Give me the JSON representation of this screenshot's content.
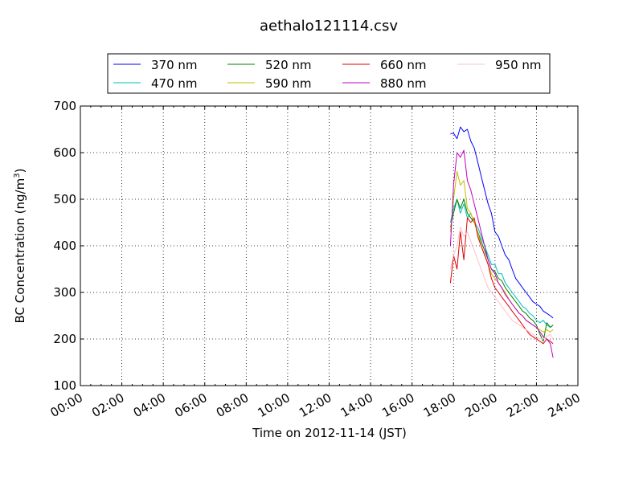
{
  "chart_data": {
    "type": "line",
    "title": "aethalo121114.csv",
    "xlabel": "Time on 2012-11-14 (JST)",
    "ylabel": "BC Concentration (ng/m",
    "ylabel_sup": "3",
    "ylabel_end": ")",
    "xlim": [
      0,
      24
    ],
    "ylim": [
      100,
      700
    ],
    "grid": true,
    "legend_position": "top",
    "x_ticks": [
      0,
      2,
      4,
      6,
      8,
      10,
      12,
      14,
      16,
      18,
      20,
      22,
      24
    ],
    "x_tick_labels": [
      "00:00",
      "02:00",
      "04:00",
      "06:00",
      "08:00",
      "10:00",
      "12:00",
      "14:00",
      "16:00",
      "18:00",
      "20:00",
      "22:00",
      "24:00"
    ],
    "y_ticks": [
      100,
      200,
      300,
      400,
      500,
      600,
      700
    ],
    "y_tick_labels": [
      "100",
      "200",
      "300",
      "400",
      "500",
      "600",
      "700"
    ],
    "series": [
      {
        "name": "370 nm",
        "color": "#0000ff",
        "x": [
          17.85,
          18.0,
          18.17,
          18.33,
          18.5,
          18.67,
          18.83,
          19.0,
          19.17,
          19.33,
          19.5,
          19.67,
          19.83,
          20.0,
          20.17,
          20.33,
          20.5,
          20.67,
          20.83,
          21.0,
          21.17,
          21.33,
          21.5,
          21.67,
          21.83,
          22.0,
          22.17,
          22.33,
          22.5,
          22.67,
          22.8
        ],
        "y": [
          640,
          642,
          630,
          655,
          645,
          650,
          625,
          610,
          580,
          550,
          520,
          490,
          470,
          430,
          420,
          400,
          380,
          370,
          350,
          330,
          320,
          310,
          300,
          290,
          280,
          275,
          270,
          260,
          255,
          250,
          245
        ]
      },
      {
        "name": "470 nm",
        "color": "#00bfbf",
        "x": [
          17.85,
          18.0,
          18.17,
          18.33,
          18.5,
          18.67,
          18.83,
          19.0,
          19.17,
          19.33,
          19.5,
          19.67,
          19.83,
          20.0,
          20.17,
          20.33,
          20.5,
          20.67,
          20.83,
          21.0,
          21.17,
          21.33,
          21.5,
          21.67,
          21.83,
          22.0,
          22.17,
          22.33,
          22.5,
          22.67,
          22.8
        ],
        "y": [
          450,
          480,
          500,
          470,
          490,
          460,
          470,
          450,
          440,
          420,
          400,
          380,
          360,
          360,
          340,
          340,
          320,
          310,
          300,
          290,
          280,
          270,
          265,
          255,
          250,
          240,
          235,
          240,
          230,
          225,
          230
        ]
      },
      {
        "name": "520 nm",
        "color": "#008000",
        "x": [
          17.85,
          18.0,
          18.17,
          18.33,
          18.5,
          18.67,
          18.83,
          19.0,
          19.17,
          19.33,
          19.5,
          19.67,
          19.83,
          20.0,
          20.17,
          20.33,
          20.5,
          20.67,
          20.83,
          21.0,
          21.17,
          21.33,
          21.5,
          21.67,
          21.83,
          22.0,
          22.17,
          22.33,
          22.5,
          22.67,
          22.8
        ],
        "y": [
          440,
          470,
          500,
          480,
          500,
          470,
          460,
          450,
          430,
          410,
          390,
          370,
          350,
          345,
          330,
          325,
          310,
          300,
          290,
          280,
          270,
          260,
          255,
          245,
          240,
          230,
          210,
          195,
          235,
          225,
          230
        ]
      },
      {
        "name": "590 nm",
        "color": "#bfbf00",
        "x": [
          17.85,
          18.0,
          18.17,
          18.33,
          18.5,
          18.67,
          18.83,
          19.0,
          19.17,
          19.33,
          19.5,
          19.67,
          19.83,
          20.0,
          20.17,
          20.33,
          20.5,
          20.67,
          20.83,
          21.0,
          21.17,
          21.33,
          21.5,
          21.67,
          21.83,
          22.0,
          22.17,
          22.33,
          22.5,
          22.67,
          22.8
        ],
        "y": [
          430,
          500,
          560,
          530,
          540,
          480,
          470,
          450,
          430,
          400,
          380,
          360,
          340,
          330,
          320,
          310,
          300,
          285,
          275,
          265,
          255,
          250,
          240,
          235,
          230,
          225,
          220,
          215,
          220,
          215,
          220
        ]
      },
      {
        "name": "660 nm",
        "color": "#e00000",
        "x": [
          17.85,
          18.0,
          18.17,
          18.33,
          18.5,
          18.67,
          18.83,
          19.0,
          19.17,
          19.33,
          19.5,
          19.67,
          19.83,
          20.0,
          20.17,
          20.33,
          20.5,
          20.67,
          20.83,
          21.0,
          21.17,
          21.33,
          21.5,
          21.67,
          21.83,
          22.0,
          22.17,
          22.33,
          22.5,
          22.67,
          22.8
        ],
        "y": [
          320,
          380,
          350,
          430,
          370,
          460,
          450,
          460,
          420,
          400,
          380,
          360,
          330,
          310,
          300,
          290,
          280,
          270,
          260,
          250,
          240,
          230,
          220,
          210,
          205,
          200,
          195,
          190,
          200,
          195,
          190
        ]
      },
      {
        "name": "880 nm",
        "color": "#c000c0",
        "x": [
          17.85,
          18.0,
          18.17,
          18.33,
          18.5,
          18.67,
          18.83,
          19.0,
          19.17,
          19.33,
          19.5,
          19.67,
          19.83,
          20.0,
          20.17,
          20.33,
          20.5,
          20.67,
          20.83,
          21.0,
          21.17,
          21.33,
          21.5,
          21.67,
          21.83,
          22.0,
          22.17,
          22.33,
          22.5,
          22.67,
          22.8
        ],
        "y": [
          400,
          530,
          600,
          590,
          605,
          540,
          520,
          490,
          460,
          430,
          400,
          370,
          350,
          340,
          320,
          310,
          295,
          285,
          275,
          265,
          255,
          250,
          240,
          235,
          230,
          225,
          215,
          205,
          200,
          190,
          160
        ]
      },
      {
        "name": "950 nm",
        "color": "#ffc0cb",
        "x": [
          17.85,
          18.0,
          18.17,
          18.33,
          18.5,
          18.67,
          18.83,
          19.0,
          19.17,
          19.33,
          19.5,
          19.67,
          19.83,
          20.0,
          20.17,
          20.33,
          20.5,
          20.67,
          20.83,
          21.0,
          21.17,
          21.33,
          21.5,
          21.67,
          21.83,
          22.0,
          22.17,
          22.33,
          22.5,
          22.67,
          22.8
        ],
        "y": [
          350,
          380,
          400,
          440,
          420,
          430,
          410,
          390,
          370,
          350,
          330,
          310,
          300,
          290,
          280,
          270,
          260,
          250,
          240,
          235,
          230,
          225,
          220,
          215,
          210,
          205,
          200,
          200,
          205,
          210,
          200
        ]
      }
    ]
  }
}
